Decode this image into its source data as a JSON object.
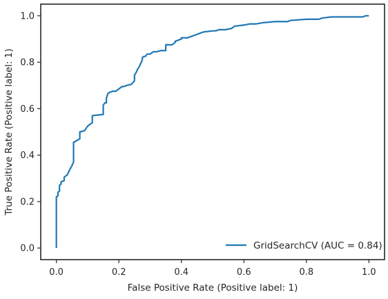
{
  "chart_data": {
    "type": "line",
    "title": "",
    "xlabel": "False Positive Rate (Positive label: 1)",
    "ylabel": "True Positive Rate (Positive label: 1)",
    "xlim": [
      -0.05,
      1.05
    ],
    "ylim": [
      -0.05,
      1.05
    ],
    "xticks": [
      0.0,
      0.2,
      0.4,
      0.6,
      0.8,
      1.0
    ],
    "yticks": [
      0.0,
      0.2,
      0.4,
      0.6,
      0.8,
      1.0
    ],
    "xtick_labels": [
      "0.0",
      "0.2",
      "0.4",
      "0.6",
      "0.8",
      "1.0"
    ],
    "ytick_labels": [
      "0.0",
      "0.2",
      "0.4",
      "0.6",
      "0.8",
      "1.0"
    ],
    "grid": false,
    "legend_position": "lower-right",
    "series": [
      {
        "name": "GridSearchCV (AUC = 0.84)",
        "color": "#1f77b4",
        "x": [
          0.0,
          0.0,
          0.0,
          0.005,
          0.005,
          0.01,
          0.01,
          0.015,
          0.015,
          0.025,
          0.025,
          0.035,
          0.04,
          0.05,
          0.055,
          0.055,
          0.075,
          0.075,
          0.09,
          0.1,
          0.115,
          0.115,
          0.15,
          0.15,
          0.155,
          0.16,
          0.16,
          0.165,
          0.17,
          0.18,
          0.19,
          0.2,
          0.21,
          0.215,
          0.225,
          0.24,
          0.25,
          0.25,
          0.255,
          0.26,
          0.265,
          0.27,
          0.275,
          0.275,
          0.28,
          0.285,
          0.29,
          0.3,
          0.305,
          0.31,
          0.32,
          0.335,
          0.35,
          0.35,
          0.37,
          0.38,
          0.38,
          0.4,
          0.4,
          0.42,
          0.43,
          0.45,
          0.46,
          0.47,
          0.5,
          0.51,
          0.52,
          0.54,
          0.56,
          0.57,
          0.6,
          0.62,
          0.64,
          0.66,
          0.7,
          0.72,
          0.74,
          0.75,
          0.8,
          0.84,
          0.85,
          0.88,
          0.96,
          0.98,
          0.99,
          1.0
        ],
        "y": [
          0.0,
          0.21,
          0.22,
          0.225,
          0.24,
          0.245,
          0.27,
          0.275,
          0.285,
          0.29,
          0.305,
          0.315,
          0.33,
          0.355,
          0.37,
          0.455,
          0.47,
          0.5,
          0.505,
          0.525,
          0.54,
          0.57,
          0.575,
          0.615,
          0.625,
          0.625,
          0.645,
          0.665,
          0.67,
          0.675,
          0.675,
          0.685,
          0.695,
          0.695,
          0.7,
          0.705,
          0.72,
          0.745,
          0.755,
          0.77,
          0.78,
          0.795,
          0.81,
          0.82,
          0.825,
          0.825,
          0.835,
          0.835,
          0.84,
          0.845,
          0.845,
          0.85,
          0.85,
          0.875,
          0.875,
          0.885,
          0.89,
          0.9,
          0.905,
          0.905,
          0.91,
          0.92,
          0.925,
          0.93,
          0.935,
          0.935,
          0.94,
          0.94,
          0.945,
          0.955,
          0.96,
          0.965,
          0.965,
          0.97,
          0.975,
          0.975,
          0.975,
          0.98,
          0.985,
          0.985,
          0.99,
          0.995,
          0.995,
          0.995,
          1.0,
          1.0
        ]
      }
    ]
  }
}
